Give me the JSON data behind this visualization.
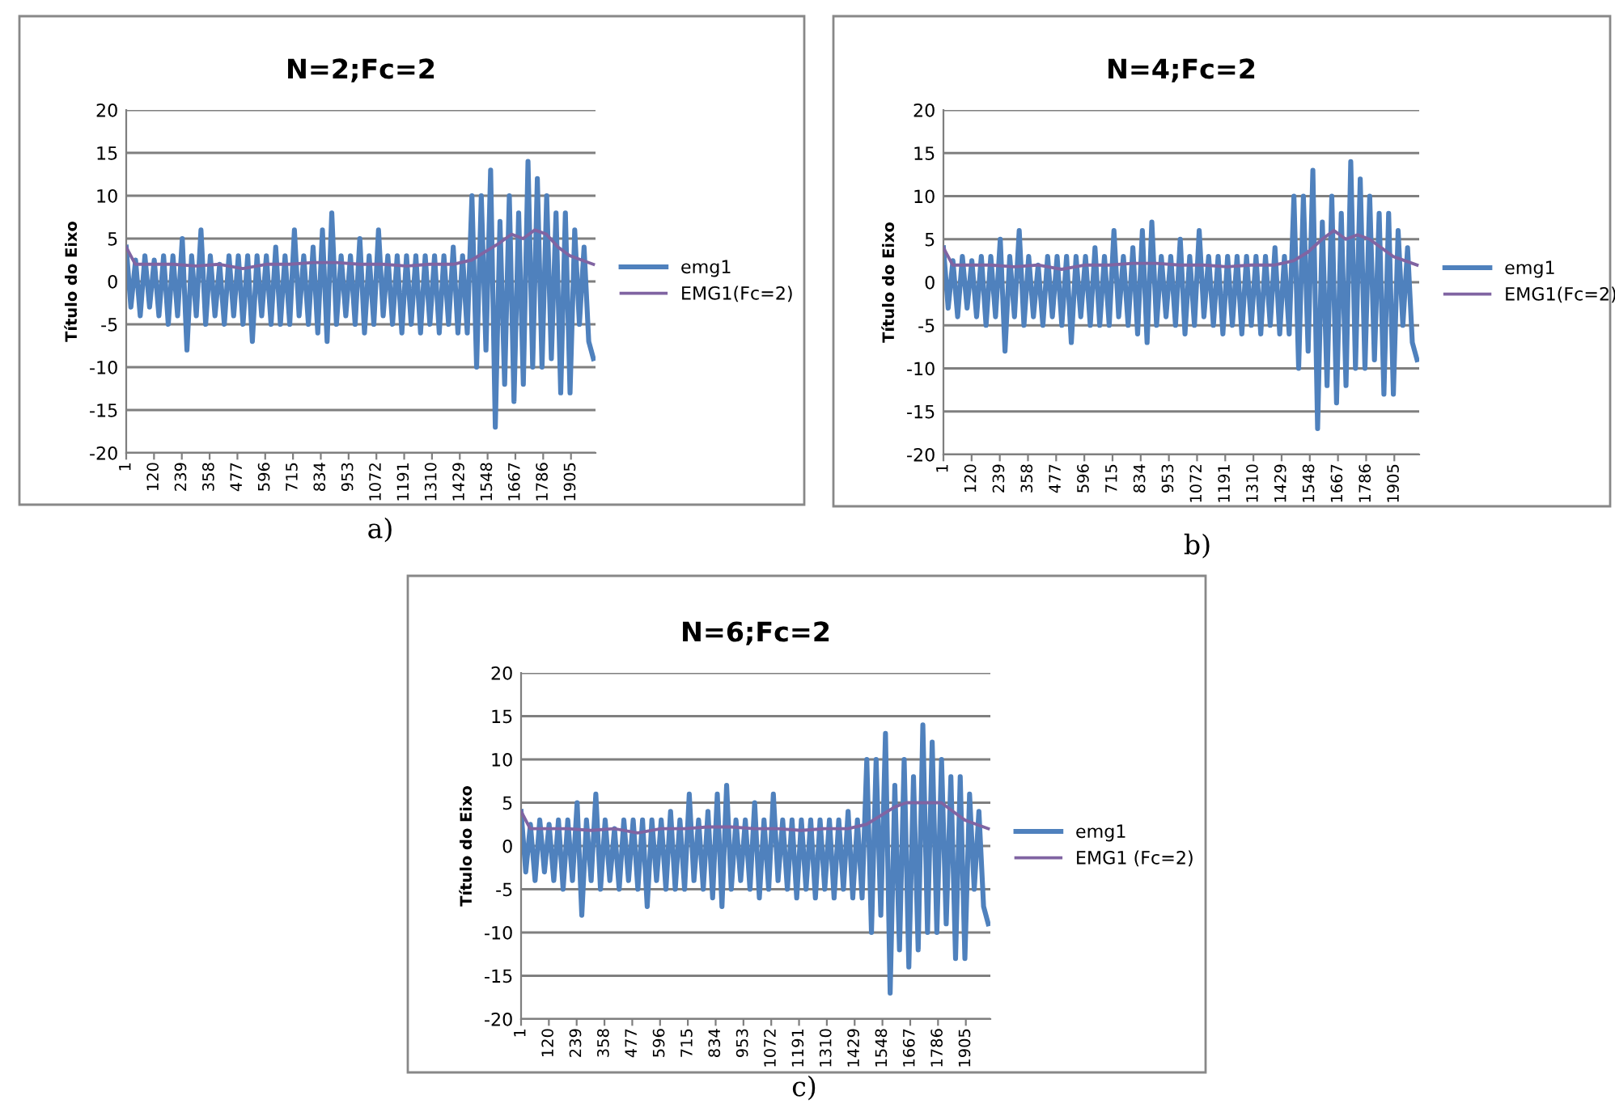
{
  "chart_data": [
    {
      "type": "line",
      "title": "N=2;Fc=2",
      "ylabel": "Título do Eixo",
      "annotations": [
        "a)"
      ],
      "xlim": [
        1,
        2010
      ],
      "xticks": [
        1,
        120,
        239,
        358,
        477,
        596,
        715,
        834,
        953,
        1072,
        1191,
        1310,
        1429,
        1548,
        1667,
        1786,
        1905
      ],
      "ylim": [
        -20,
        20
      ],
      "yticks": [
        -20,
        -15,
        -10,
        -5,
        0,
        5,
        10,
        15,
        20
      ],
      "grid": "y",
      "legend": "right",
      "x": [
        1,
        21,
        41,
        61,
        81,
        101,
        121,
        141,
        161,
        181,
        201,
        221,
        241,
        261,
        281,
        301,
        321,
        341,
        361,
        381,
        401,
        421,
        441,
        461,
        481,
        501,
        521,
        541,
        561,
        581,
        601,
        621,
        641,
        661,
        681,
        701,
        721,
        741,
        761,
        781,
        801,
        821,
        841,
        861,
        881,
        901,
        921,
        941,
        961,
        981,
        1001,
        1021,
        1041,
        1061,
        1081,
        1101,
        1121,
        1141,
        1161,
        1181,
        1201,
        1221,
        1241,
        1261,
        1281,
        1301,
        1321,
        1341,
        1361,
        1381,
        1401,
        1421,
        1441,
        1461,
        1481,
        1501,
        1521,
        1541,
        1561,
        1581,
        1601,
        1621,
        1641,
        1661,
        1681,
        1701,
        1721,
        1741,
        1761,
        1781,
        1801,
        1821,
        1841,
        1861,
        1881,
        1901,
        1921,
        1941,
        1961,
        1981,
        2001
      ],
      "series": [
        {
          "name": "emg1",
          "color": "#4f81bd",
          "values": [
            4,
            -3,
            2.5,
            -4,
            3,
            -3,
            2.5,
            -4,
            3,
            -5,
            3,
            -4,
            5,
            -8,
            3,
            -4,
            6,
            -5,
            3,
            -4,
            2,
            -5,
            3,
            -4,
            3,
            -5,
            3,
            -7,
            3,
            -4,
            3,
            -5,
            4,
            -5,
            3,
            -5,
            6,
            -4,
            3,
            -5,
            4,
            -6,
            6,
            -7,
            8,
            -5,
            3,
            -4,
            3,
            -5,
            5,
            -6,
            3,
            -5,
            6,
            -4,
            3,
            -5,
            3,
            -6,
            3,
            -5,
            3,
            -6,
            3,
            -5,
            3,
            -6,
            3,
            -5,
            4,
            -6,
            3,
            -6,
            10,
            -10,
            10,
            -8,
            13,
            -17,
            7,
            -12,
            10,
            -14,
            8,
            -12,
            14,
            -10,
            12,
            -10,
            10,
            -9,
            8,
            -13,
            8,
            -13,
            6,
            -5,
            4,
            -7,
            -9
          ]
        },
        {
          "name": "EMG1(Fc=2)",
          "color": "#8064a2",
          "x": [
            1,
            40,
            100,
            200,
            300,
            400,
            500,
            600,
            700,
            800,
            900,
            1000,
            1100,
            1200,
            1300,
            1400,
            1480,
            1540,
            1600,
            1650,
            1700,
            1750,
            1800,
            1850,
            1900,
            1950,
            2001
          ],
          "values": [
            4,
            2,
            2,
            2,
            1.8,
            2,
            1.5,
            2,
            2,
            2.2,
            2.2,
            2,
            2,
            1.8,
            2,
            2,
            2.5,
            3.5,
            4.5,
            5.5,
            5,
            6,
            5.5,
            4,
            3,
            2.5,
            2
          ]
        }
      ]
    },
    {
      "type": "line",
      "title": "N=4;Fc=2",
      "ylabel": "Título do Eixo",
      "annotations": [
        "b)"
      ],
      "xlim": [
        1,
        2010
      ],
      "xticks": [
        1,
        120,
        239,
        358,
        477,
        596,
        715,
        834,
        953,
        1072,
        1191,
        1310,
        1429,
        1548,
        1667,
        1786,
        1905
      ],
      "ylim": [
        -20,
        20
      ],
      "yticks": [
        -20,
        -15,
        -10,
        -5,
        0,
        5,
        10,
        15,
        20
      ],
      "grid": "y",
      "legend": "right",
      "x": [
        1,
        21,
        41,
        61,
        81,
        101,
        121,
        141,
        161,
        181,
        201,
        221,
        241,
        261,
        281,
        301,
        321,
        341,
        361,
        381,
        401,
        421,
        441,
        461,
        481,
        501,
        521,
        541,
        561,
        581,
        601,
        621,
        641,
        661,
        681,
        701,
        721,
        741,
        761,
        781,
        801,
        821,
        841,
        861,
        881,
        901,
        921,
        941,
        961,
        981,
        1001,
        1021,
        1041,
        1061,
        1081,
        1101,
        1121,
        1141,
        1161,
        1181,
        1201,
        1221,
        1241,
        1261,
        1281,
        1301,
        1321,
        1341,
        1361,
        1381,
        1401,
        1421,
        1441,
        1461,
        1481,
        1501,
        1521,
        1541,
        1561,
        1581,
        1601,
        1621,
        1641,
        1661,
        1681,
        1701,
        1721,
        1741,
        1761,
        1781,
        1801,
        1821,
        1841,
        1861,
        1881,
        1901,
        1921,
        1941,
        1961,
        1981,
        2001
      ],
      "series": [
        {
          "name": "emg1",
          "color": "#4f81bd",
          "values": [
            4,
            -3,
            2.5,
            -4,
            3,
            -3,
            2.5,
            -4,
            3,
            -5,
            3,
            -4,
            5,
            -8,
            3,
            -4,
            6,
            -5,
            3,
            -4,
            2,
            -5,
            3,
            -4,
            3,
            -5,
            3,
            -7,
            3,
            -4,
            3,
            -5,
            4,
            -5,
            3,
            -5,
            6,
            -4,
            3,
            -5,
            4,
            -6,
            6,
            -7,
            7,
            -5,
            3,
            -4,
            3,
            -5,
            5,
            -6,
            3,
            -5,
            6,
            -4,
            3,
            -5,
            3,
            -6,
            3,
            -5,
            3,
            -6,
            3,
            -5,
            3,
            -6,
            3,
            -5,
            4,
            -6,
            3,
            -6,
            10,
            -10,
            10,
            -8,
            13,
            -17,
            7,
            -12,
            10,
            -14,
            8,
            -12,
            14,
            -10,
            12,
            -10,
            10,
            -9,
            8,
            -13,
            8,
            -13,
            6,
            -5,
            4,
            -7,
            -9
          ]
        },
        {
          "name": "EMG1(Fc=2)",
          "color": "#8064a2",
          "x": [
            1,
            40,
            100,
            200,
            300,
            400,
            500,
            600,
            700,
            800,
            900,
            1000,
            1100,
            1200,
            1300,
            1400,
            1480,
            1540,
            1600,
            1650,
            1700,
            1750,
            1800,
            1850,
            1900,
            1950,
            2001
          ],
          "values": [
            4,
            2,
            2,
            2,
            1.8,
            2,
            1.5,
            2,
            2,
            2.2,
            2.2,
            2,
            2,
            1.8,
            2,
            2,
            2.5,
            3.5,
            5,
            6,
            5,
            5.5,
            5,
            4,
            3,
            2.5,
            2
          ]
        }
      ]
    },
    {
      "type": "line",
      "title": "N=6;Fc=2",
      "ylabel": "Título do Eixo",
      "annotations": [
        "c)"
      ],
      "xlim": [
        1,
        2010
      ],
      "xticks": [
        1,
        120,
        239,
        358,
        477,
        596,
        715,
        834,
        953,
        1072,
        1191,
        1310,
        1429,
        1548,
        1667,
        1786,
        1905
      ],
      "ylim": [
        -20,
        20
      ],
      "yticks": [
        -20,
        -15,
        -10,
        -5,
        0,
        5,
        10,
        15,
        20
      ],
      "grid": "y",
      "legend": "right",
      "x": [
        1,
        21,
        41,
        61,
        81,
        101,
        121,
        141,
        161,
        181,
        201,
        221,
        241,
        261,
        281,
        301,
        321,
        341,
        361,
        381,
        401,
        421,
        441,
        461,
        481,
        501,
        521,
        541,
        561,
        581,
        601,
        621,
        641,
        661,
        681,
        701,
        721,
        741,
        761,
        781,
        801,
        821,
        841,
        861,
        881,
        901,
        921,
        941,
        961,
        981,
        1001,
        1021,
        1041,
        1061,
        1081,
        1101,
        1121,
        1141,
        1161,
        1181,
        1201,
        1221,
        1241,
        1261,
        1281,
        1301,
        1321,
        1341,
        1361,
        1381,
        1401,
        1421,
        1441,
        1461,
        1481,
        1501,
        1521,
        1541,
        1561,
        1581,
        1601,
        1621,
        1641,
        1661,
        1681,
        1701,
        1721,
        1741,
        1761,
        1781,
        1801,
        1821,
        1841,
        1861,
        1881,
        1901,
        1921,
        1941,
        1961,
        1981,
        2001
      ],
      "series": [
        {
          "name": "emg1",
          "color": "#4f81bd",
          "values": [
            4,
            -3,
            2.5,
            -4,
            3,
            -3,
            2.5,
            -4,
            3,
            -5,
            3,
            -4,
            5,
            -8,
            3,
            -4,
            6,
            -5,
            3,
            -4,
            2,
            -5,
            3,
            -4,
            3,
            -5,
            3,
            -7,
            3,
            -4,
            3,
            -5,
            4,
            -5,
            3,
            -5,
            6,
            -4,
            3,
            -5,
            4,
            -6,
            6,
            -7,
            7,
            -5,
            3,
            -4,
            3,
            -5,
            5,
            -6,
            3,
            -5,
            6,
            -4,
            3,
            -5,
            3,
            -6,
            3,
            -5,
            3,
            -6,
            3,
            -5,
            3,
            -6,
            3,
            -5,
            4,
            -6,
            3,
            -6,
            10,
            -10,
            10,
            -8,
            13,
            -17,
            7,
            -12,
            10,
            -14,
            8,
            -12,
            14,
            -10,
            12,
            -10,
            10,
            -9,
            8,
            -13,
            8,
            -13,
            6,
            -5,
            4,
            -7,
            -9
          ]
        },
        {
          "name": "EMG1 (Fc=2)",
          "color": "#8064a2",
          "x": [
            1,
            40,
            100,
            200,
            300,
            400,
            500,
            600,
            700,
            800,
            900,
            1000,
            1100,
            1200,
            1300,
            1400,
            1480,
            1540,
            1600,
            1650,
            1700,
            1750,
            1800,
            1850,
            1900,
            1950,
            2001
          ],
          "values": [
            4,
            2,
            2,
            2,
            1.8,
            2,
            1.5,
            2,
            2,
            2.2,
            2.2,
            2,
            2,
            1.8,
            2,
            2,
            2.5,
            3.5,
            4.5,
            5,
            5,
            5,
            5,
            4,
            3,
            2.5,
            2
          ]
        }
      ]
    }
  ]
}
